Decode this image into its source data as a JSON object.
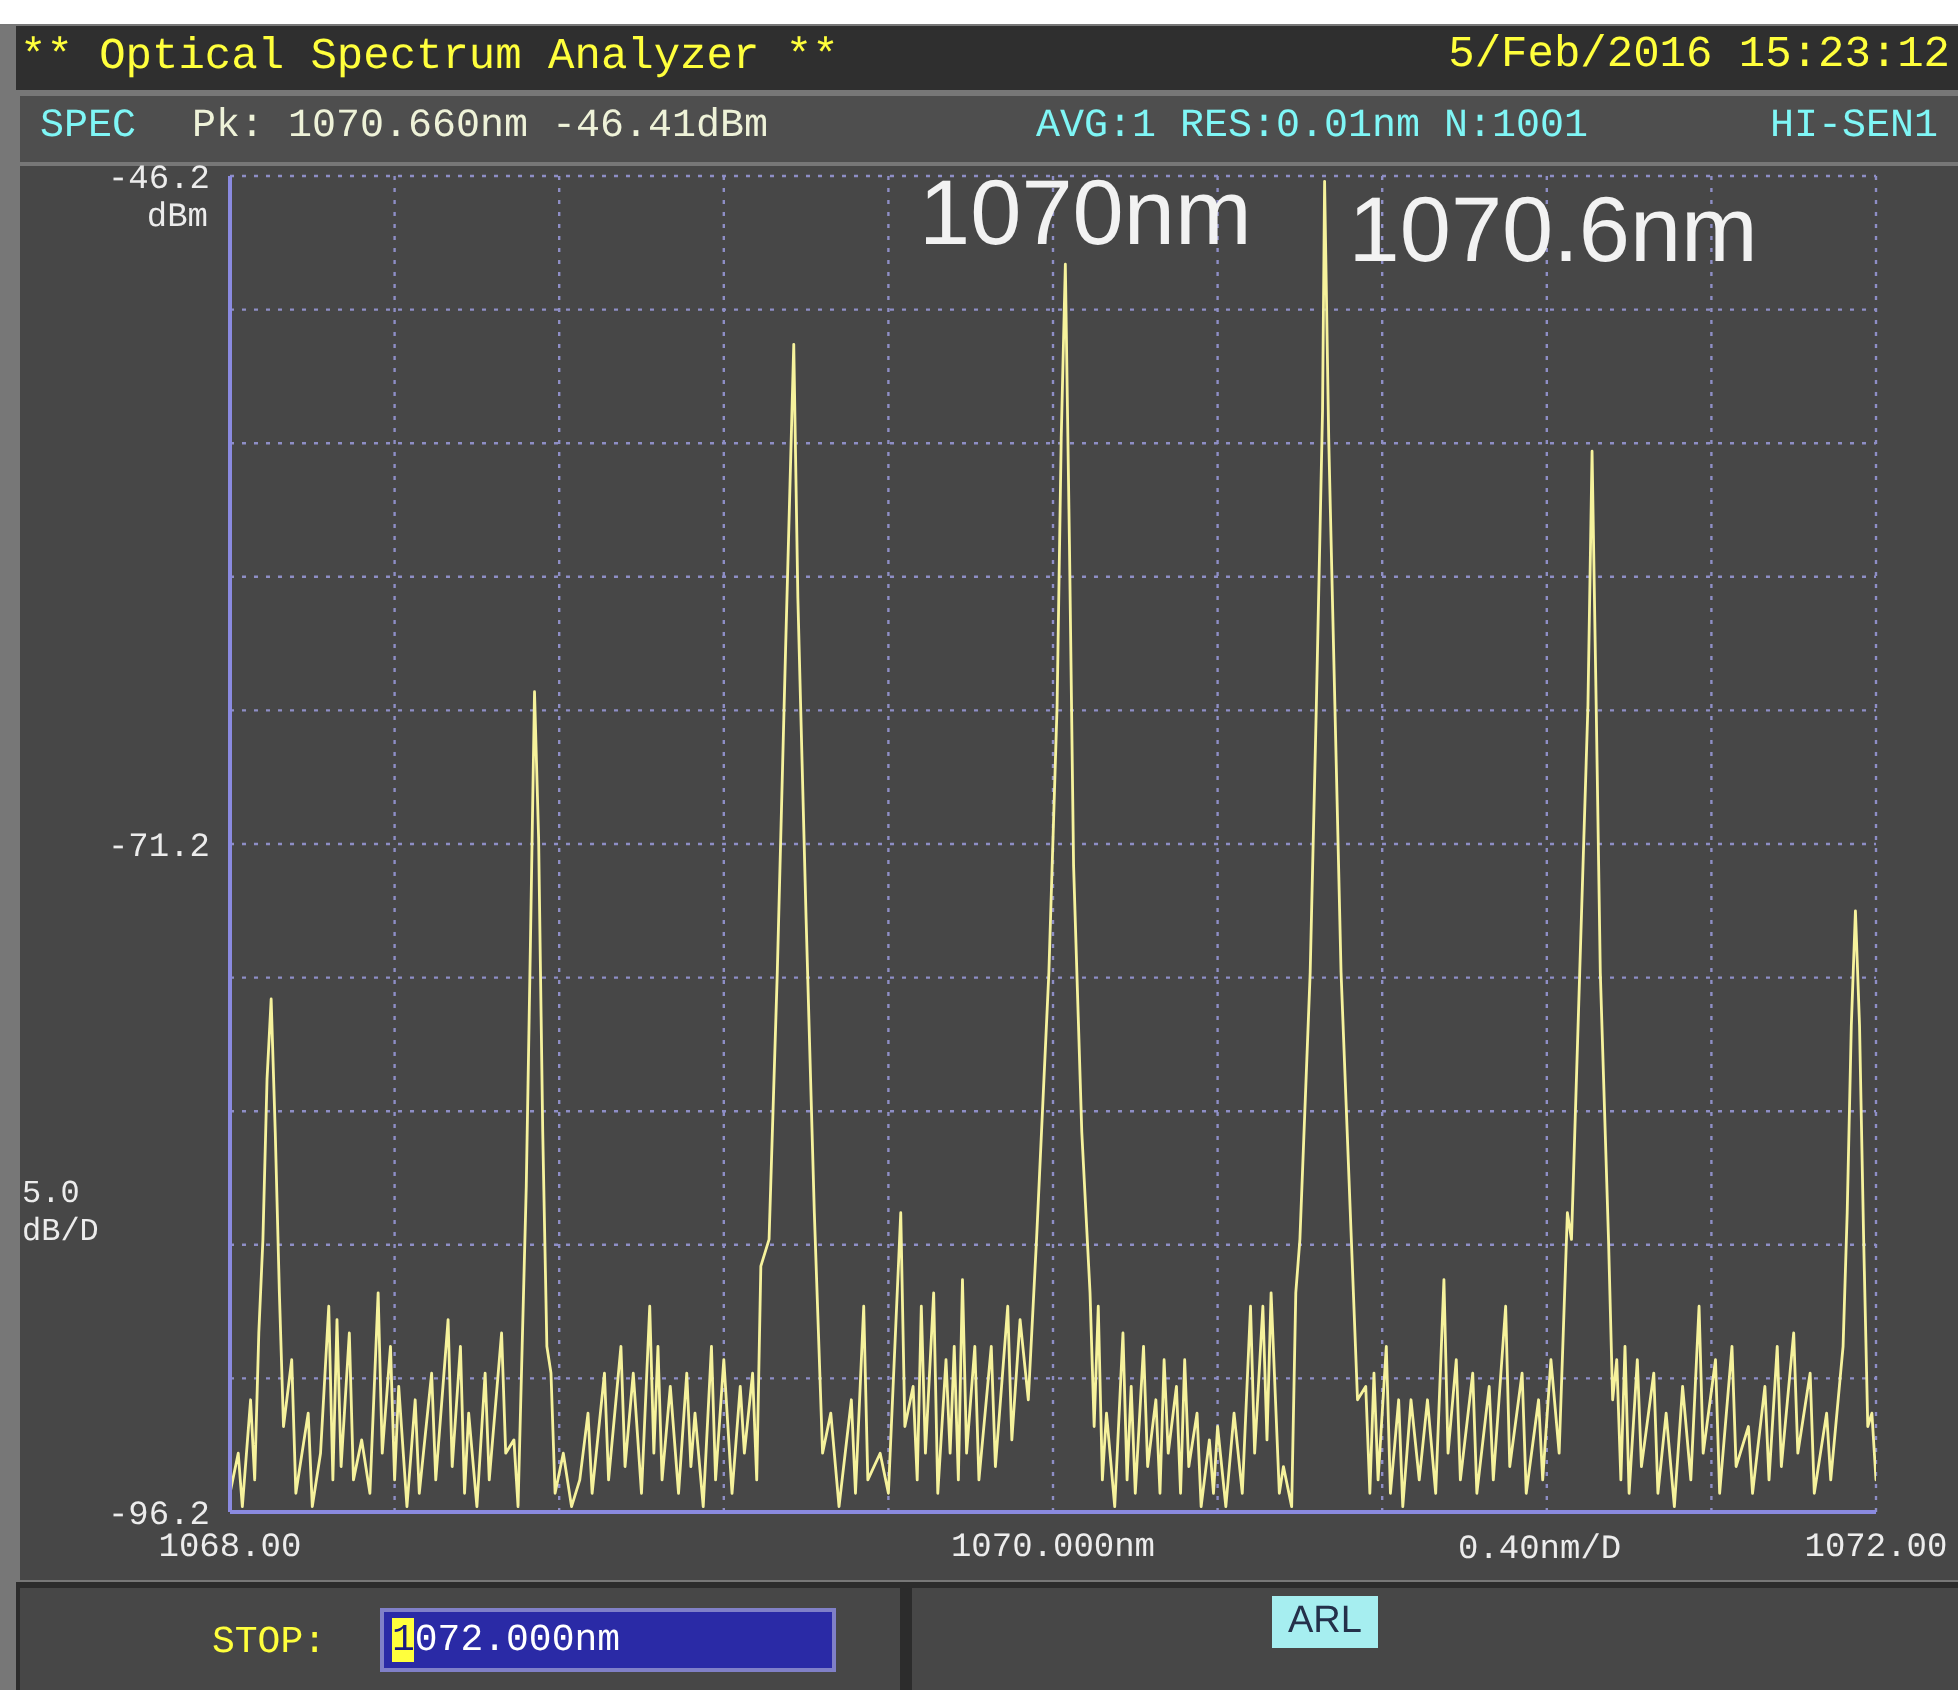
{
  "chart_data": {
    "type": "line",
    "title": "** Optical Spectrum Analyzer **",
    "xlabel": "0.40nm/D",
    "ylabel": "dBm",
    "annotations": [
      "5/Feb/2016 15:23:12",
      "SPEC",
      "Pk: 1070.660nm -46.41dBm",
      "AVG:1 RES:0.01nm N:1001",
      "HI-SEN1",
      "5.0 dB/D",
      "STOP:",
      "1072.000nm",
      "ARL",
      {
        "text": "1070nm",
        "x": 1070.03,
        "y": -49.5
      },
      {
        "text": "1070.6nm",
        "x": 1070.66,
        "y": -46.4
      }
    ],
    "x": [
      1068.0,
      1068.02,
      1068.03,
      1068.05,
      1068.06,
      1068.07,
      1068.08,
      1068.09,
      1068.1,
      1068.11,
      1068.12,
      1068.13,
      1068.15,
      1068.16,
      1068.19,
      1068.2,
      1068.22,
      1068.24,
      1068.25,
      1068.26,
      1068.27,
      1068.29,
      1068.3,
      1068.32,
      1068.34,
      1068.36,
      1068.37,
      1068.39,
      1068.4,
      1068.41,
      1068.43,
      1068.45,
      1068.46,
      1068.49,
      1068.5,
      1068.53,
      1068.54,
      1068.56,
      1068.57,
      1068.58,
      1068.6,
      1068.62,
      1068.63,
      1068.66,
      1068.67,
      1068.69,
      1068.7,
      1068.71,
      1068.72,
      1068.73,
      1068.74,
      1068.75,
      1068.76,
      1068.77,
      1068.78,
      1068.79,
      1068.81,
      1068.83,
      1068.85,
      1068.87,
      1068.88,
      1068.91,
      1068.92,
      1068.95,
      1068.96,
      1068.98,
      1069.0,
      1069.02,
      1069.03,
      1069.04,
      1069.05,
      1069.07,
      1069.09,
      1069.11,
      1069.12,
      1069.13,
      1069.15,
      1069.17,
      1069.18,
      1069.2,
      1069.22,
      1069.24,
      1069.25,
      1069.27,
      1069.28,
      1069.29,
      1069.31,
      1069.33,
      1069.35,
      1069.37,
      1069.38,
      1069.4,
      1069.42,
      1069.43,
      1069.44,
      1069.46,
      1069.48,
      1069.51,
      1069.52,
      1069.54,
      1069.55,
      1069.58,
      1069.6,
      1069.63,
      1069.64,
      1069.66,
      1069.67,
      1069.68,
      1069.69,
      1069.71,
      1069.72,
      1069.74,
      1069.75,
      1069.76,
      1069.77,
      1069.78,
      1069.79,
      1069.81,
      1069.82,
      1069.85,
      1069.86,
      1069.89,
      1069.9,
      1069.92,
      1069.94,
      1069.96,
      1069.99,
      1070.01,
      1070.02,
      1070.03,
      1070.04,
      1070.05,
      1070.07,
      1070.09,
      1070.1,
      1070.11,
      1070.12,
      1070.13,
      1070.15,
      1070.17,
      1070.18,
      1070.19,
      1070.2,
      1070.22,
      1070.23,
      1070.25,
      1070.26,
      1070.27,
      1070.28,
      1070.3,
      1070.31,
      1070.32,
      1070.33,
      1070.35,
      1070.36,
      1070.38,
      1070.39,
      1070.4,
      1070.42,
      1070.44,
      1070.46,
      1070.48,
      1070.49,
      1070.51,
      1070.52,
      1070.53,
      1070.55,
      1070.56,
      1070.58,
      1070.59,
      1070.6,
      1070.625,
      1070.64,
      1070.655,
      1070.66,
      1070.67,
      1070.685,
      1070.7,
      1070.725,
      1070.74,
      1070.76,
      1070.77,
      1070.78,
      1070.79,
      1070.81,
      1070.82,
      1070.84,
      1070.85,
      1070.87,
      1070.89,
      1070.91,
      1070.93,
      1070.95,
      1070.96,
      1070.98,
      1070.99,
      1071.02,
      1071.03,
      1071.06,
      1071.07,
      1071.1,
      1071.11,
      1071.14,
      1071.15,
      1071.18,
      1071.19,
      1071.21,
      1071.23,
      1071.25,
      1071.26,
      1071.28,
      1071.3,
      1071.31,
      1071.32,
      1071.33,
      1071.35,
      1071.36,
      1071.37,
      1071.38,
      1071.39,
      1071.4,
      1071.42,
      1071.43,
      1071.46,
      1071.47,
      1071.49,
      1071.51,
      1071.53,
      1071.55,
      1071.57,
      1071.58,
      1071.61,
      1071.62,
      1071.65,
      1071.66,
      1071.69,
      1071.7,
      1071.73,
      1071.74,
      1071.76,
      1071.77,
      1071.8,
      1071.81,
      1071.84,
      1071.85,
      1071.88,
      1071.89,
      1071.92,
      1071.93,
      1071.94,
      1071.95,
      1071.96,
      1071.97,
      1071.98,
      1071.99,
      1072.0
    ],
    "values": [
      -95.5,
      -94,
      -96,
      -92,
      -95,
      -89.5,
      -86,
      -80,
      -77,
      -82,
      -88,
      -93,
      -90.5,
      -95.5,
      -92.5,
      -96,
      -94,
      -88.5,
      -95,
      -89,
      -94.5,
      -89.5,
      -95,
      -93.5,
      -95.5,
      -88,
      -94,
      -90,
      -95,
      -91.5,
      -96,
      -92,
      -95.5,
      -91,
      -95,
      -89,
      -94.5,
      -90,
      -95.5,
      -92.5,
      -96,
      -91,
      -95,
      -89.5,
      -94,
      -93.5,
      -96,
      -90,
      -84,
      -75,
      -65.5,
      -71,
      -82,
      -90,
      -91,
      -95.5,
      -94,
      -96,
      -95,
      -92.5,
      -95.5,
      -91,
      -95,
      -90,
      -94.5,
      -91,
      -95.5,
      -88.5,
      -94,
      -90,
      -95,
      -91.5,
      -95.5,
      -91,
      -94.5,
      -92.5,
      -96,
      -90,
      -95,
      -90.5,
      -95.5,
      -91.5,
      -94,
      -91,
      -95,
      -87,
      -86,
      -76,
      -64,
      -52.5,
      -62,
      -74,
      -85,
      -89.5,
      -94,
      -92.5,
      -96,
      -92,
      -95.5,
      -88.5,
      -95,
      -94,
      -95.5,
      -85,
      -93,
      -91.5,
      -95,
      -88.5,
      -94,
      -88,
      -95.5,
      -90.5,
      -94,
      -90,
      -95,
      -87.5,
      -94,
      -90,
      -95,
      -90,
      -94.5,
      -88.5,
      -93.5,
      -89,
      -92,
      -86,
      -76,
      -66,
      -56,
      -49.5,
      -60,
      -72,
      -82,
      -88,
      -93,
      -88.5,
      -95,
      -92.5,
      -96,
      -89.5,
      -95,
      -91.5,
      -95.5,
      -90,
      -94.5,
      -92,
      -95.5,
      -90.5,
      -94,
      -91.5,
      -95.5,
      -90.5,
      -94.5,
      -92.5,
      -96,
      -93.5,
      -95.5,
      -93,
      -96,
      -92.5,
      -95.5,
      -88.5,
      -94,
      -88.5,
      -93.5,
      -88,
      -95.5,
      -94.5,
      -96,
      -88,
      -86,
      -76,
      -66,
      -55,
      -46.4,
      -56,
      -66,
      -76,
      -86,
      -92,
      -91.5,
      -95.5,
      -91,
      -95,
      -90,
      -95.5,
      -92,
      -96,
      -92,
      -95,
      -92,
      -95.5,
      -87.5,
      -94,
      -90.5,
      -95,
      -91,
      -95.5,
      -91.5,
      -95,
      -88.5,
      -94.5,
      -91,
      -95.5,
      -92,
      -95,
      -90.5,
      -94,
      -85,
      -86,
      -76,
      -66,
      -56.5,
      -66,
      -76,
      -86,
      -92,
      -90.5,
      -95,
      -90,
      -95.5,
      -90.5,
      -94.5,
      -91,
      -95.5,
      -92.5,
      -96,
      -91.5,
      -95,
      -88.5,
      -94,
      -90.5,
      -95.5,
      -90,
      -94.5,
      -93,
      -95.5,
      -91.5,
      -95,
      -90,
      -94.5,
      -89.5,
      -94,
      -91,
      -95.5,
      -92.5,
      -95,
      -90,
      -85,
      -78,
      -73.7,
      -78,
      -86,
      -93,
      -92.5,
      -95
    ],
    "color": "#f6f29c",
    "xlim": [
      1068,
      1072
    ],
    "xticks": [
      {
        "value": 1068,
        "label": "1068.00"
      },
      {
        "value": 1068.4,
        "label": null
      },
      {
        "value": 1068.8,
        "label": null
      },
      {
        "value": 1069.2,
        "label": null
      },
      {
        "value": 1069.6,
        "label": null
      },
      {
        "value": 1070,
        "label": "1070.000nm"
      },
      {
        "value": 1070.4,
        "label": null
      },
      {
        "value": 1070.8,
        "label": null
      },
      {
        "value": 1071.2,
        "label": null
      },
      {
        "value": 1071.6,
        "label": null
      },
      {
        "value": 1072,
        "label": "1072.00"
      }
    ],
    "ylim": [
      -96.2,
      -46.2
    ],
    "yticks": [
      -96.2,
      {
        "value": -91.2,
        "label": null
      },
      {
        "value": -86.2,
        "label": null
      },
      {
        "value": -81.2,
        "label": null
      },
      {
        "value": -76.2,
        "label": null
      },
      -71.2,
      {
        "value": -66.2,
        "label": null
      },
      {
        "value": -61.2,
        "label": null
      },
      {
        "value": -56.2,
        "label": null
      },
      {
        "value": -51.2,
        "label": null
      },
      -46.2
    ],
    "grid": true,
    "line_style": "solid"
  }
}
